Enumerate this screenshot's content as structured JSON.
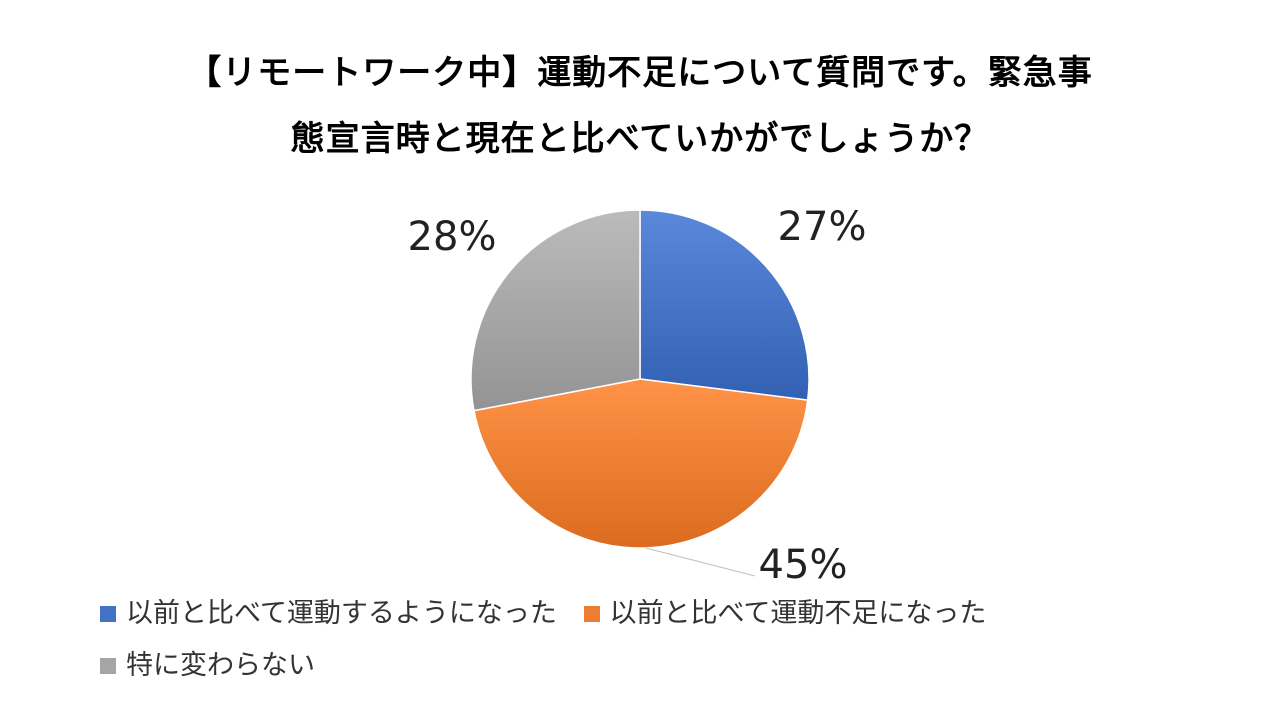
{
  "chart_data": {
    "type": "pie",
    "title_lines": [
      "【リモートワーク中】運動不足について質問です。緊急事",
      "態宣言時と現在と比べていかがでしょうか？"
    ],
    "slices": [
      {
        "name": "以前と比べて運動するようになった",
        "value": 27,
        "label": "27%",
        "color": "#4472C4"
      },
      {
        "name": "以前と比べて運動不足になった",
        "value": 45,
        "label": "45%",
        "color": "#ED7D31"
      },
      {
        "name": "特に変わらない",
        "value": 28,
        "label": "28%",
        "color": "#A5A5A5"
      }
    ],
    "legend_position": "bottom"
  }
}
